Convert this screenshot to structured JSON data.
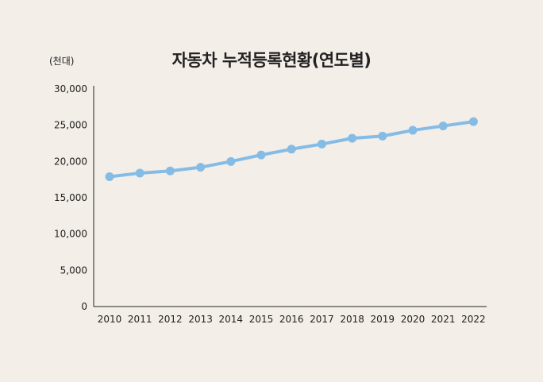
{
  "chart_data": {
    "type": "line",
    "title": "자동차 누적등록현황(연도별)",
    "unit_label": "(천대)",
    "xlabel": "",
    "ylabel": "",
    "ylim": [
      0,
      30000
    ],
    "yticks": [
      "0",
      "5,000",
      "10,000",
      "15,000",
      "20,000",
      "25,000",
      "30,000"
    ],
    "ytick_values": [
      0,
      5000,
      10000,
      15000,
      20000,
      25000,
      30000
    ],
    "categories": [
      "2010",
      "2011",
      "2012",
      "2013",
      "2014",
      "2015",
      "2016",
      "2017",
      "2018",
      "2019",
      "2020",
      "2021",
      "2022"
    ],
    "series": [
      {
        "values": [
          17900,
          18400,
          18700,
          19200,
          20000,
          20900,
          21700,
          22400,
          23200,
          23500,
          24300,
          24900,
          25500
        ],
        "color": "#85bce6"
      }
    ],
    "grid": false,
    "legend": "none"
  }
}
